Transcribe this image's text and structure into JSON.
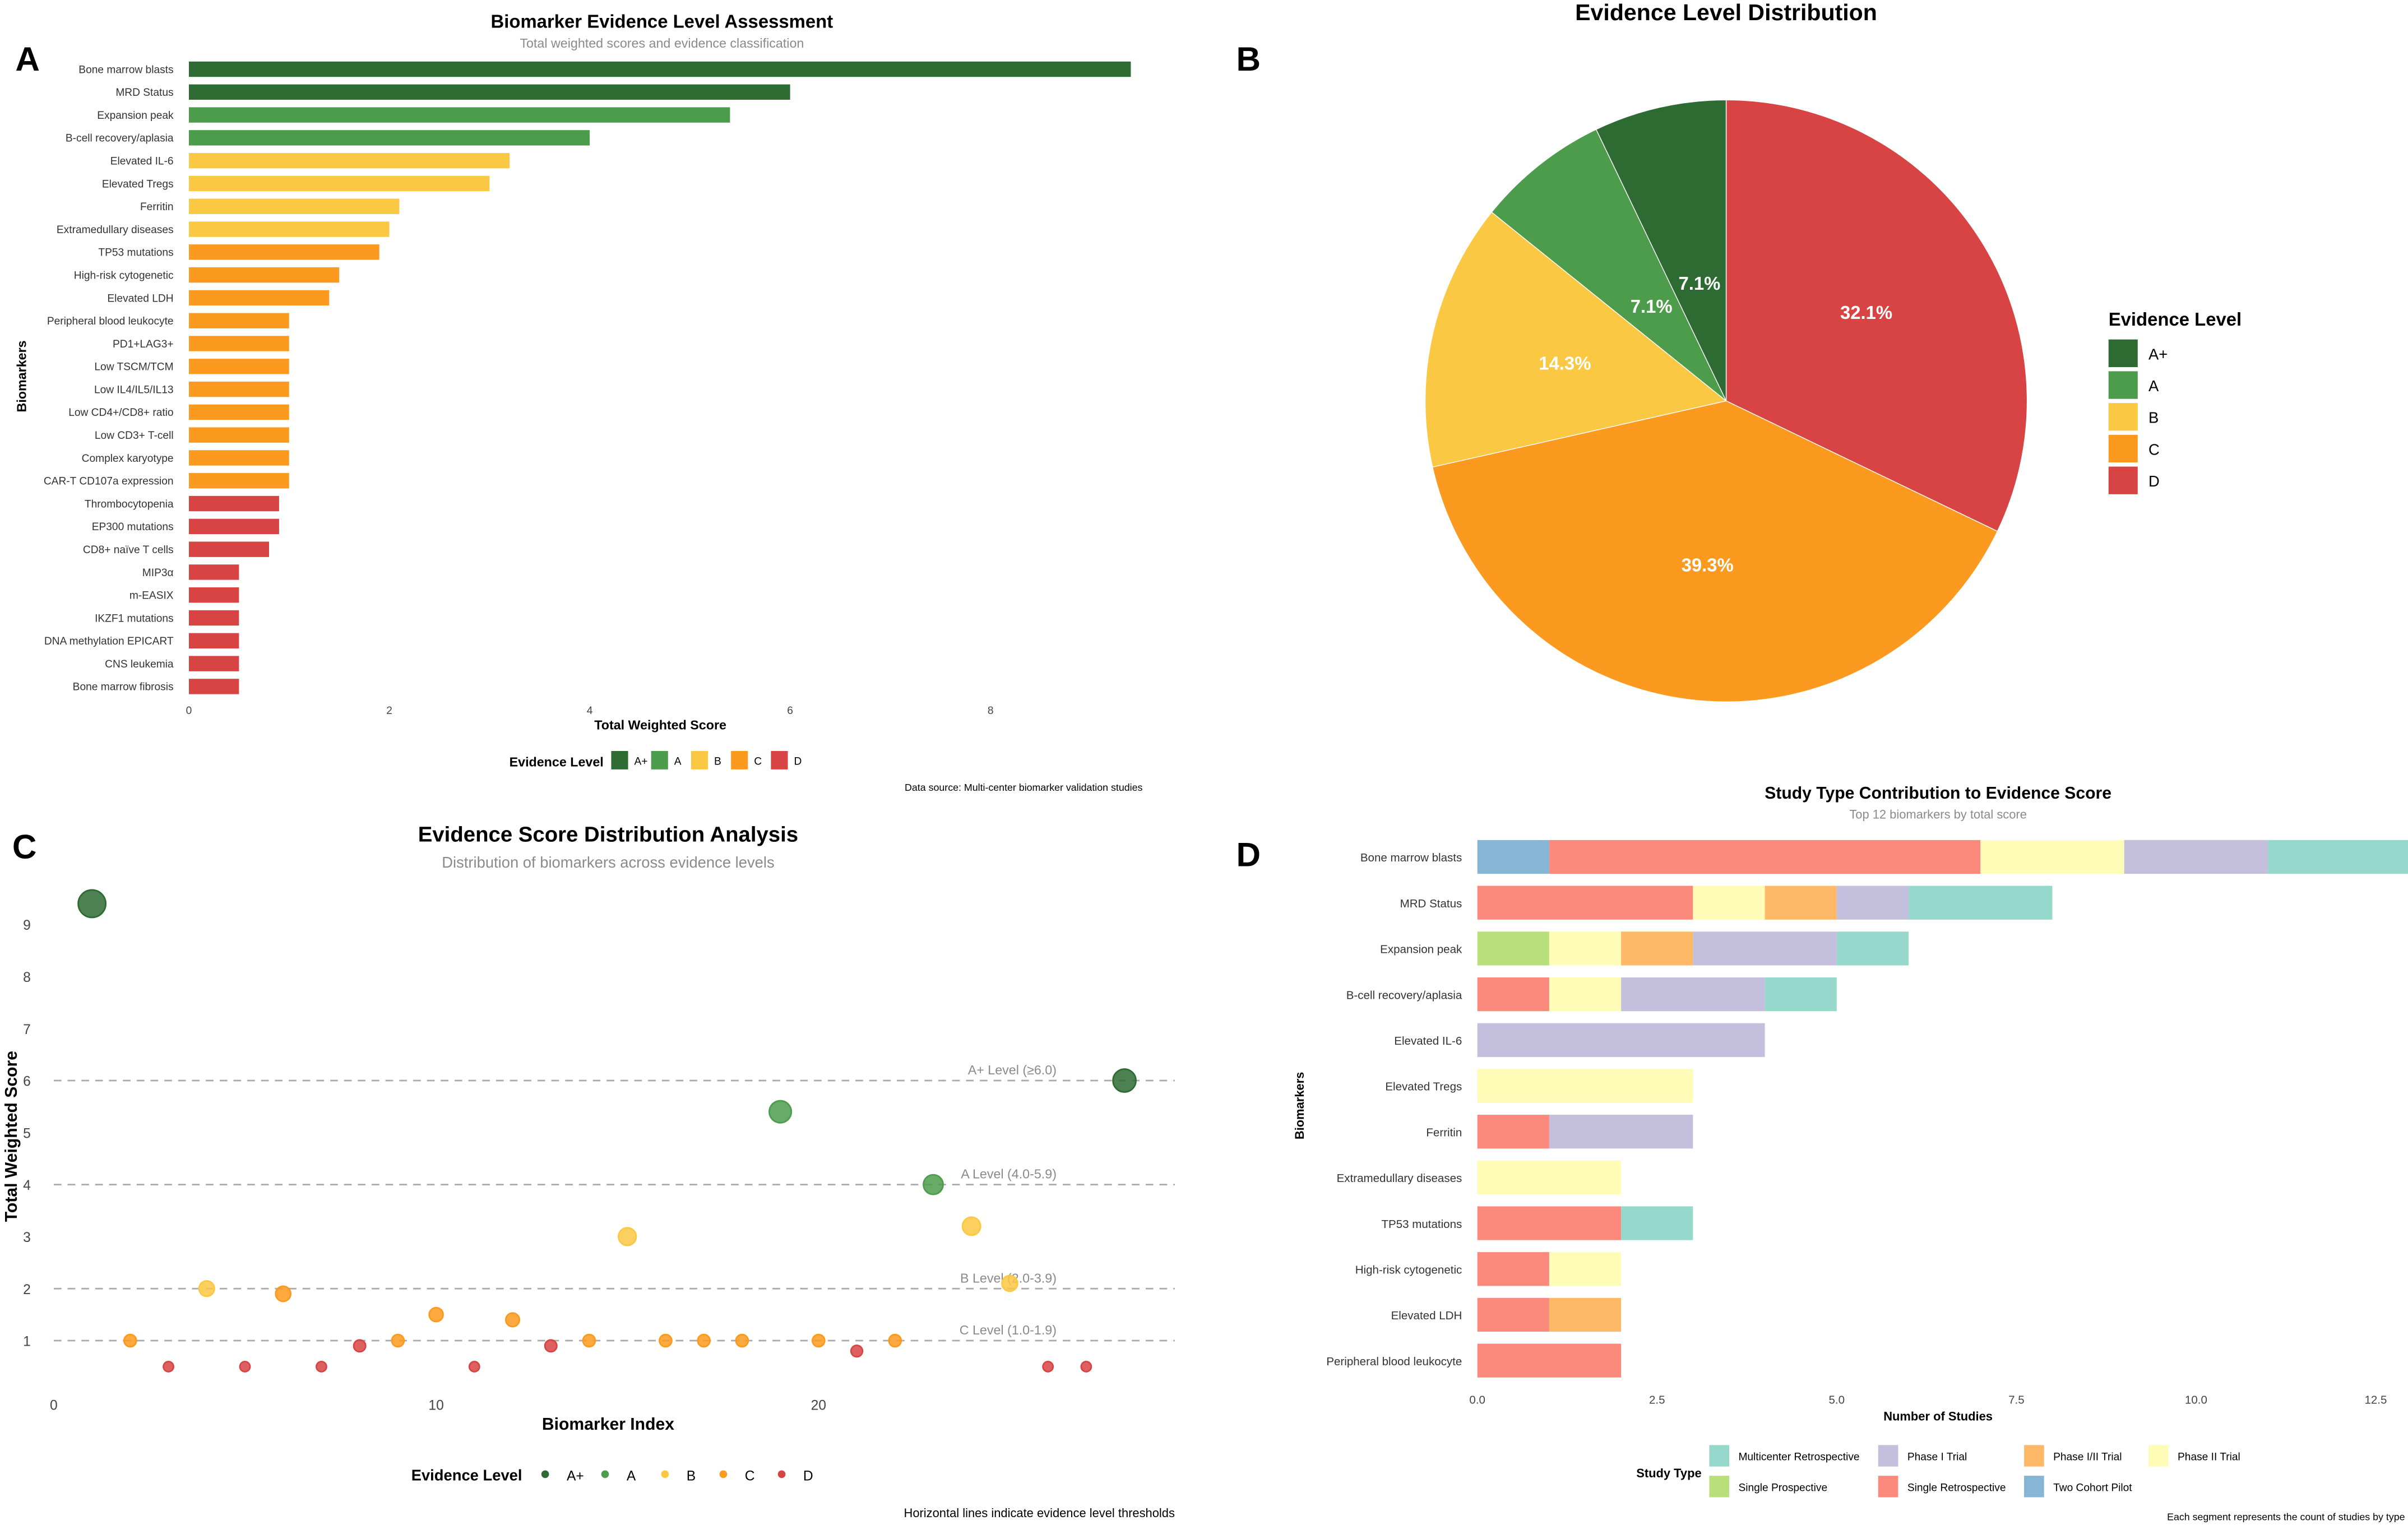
{
  "colors": {
    "A+": "#2e6b32",
    "A": "#4c9c4c",
    "B": "#fbc843",
    "C": "#fb9a1f",
    "D": "#d84444"
  },
  "evidence_levels": [
    "A+",
    "A",
    "B",
    "C",
    "D"
  ],
  "chart_data": [
    {
      "panel": "A",
      "type": "bar",
      "orientation": "horizontal",
      "title": "Biomarker Evidence Level Assessment",
      "subtitle": "Total weighted scores and evidence classification",
      "xlabel": "Total Weighted Score",
      "ylabel": "Biomarkers",
      "xlim": [
        0,
        9.4
      ],
      "xticks": [
        0,
        2,
        4,
        6,
        8
      ],
      "legend_title": "Evidence Level",
      "legend_placement": "bottom",
      "caption": "Data source: Multi-center biomarker validation studies",
      "categories": [
        "Bone marrow blasts",
        "MRD Status",
        "Expansion peak",
        "B-cell recovery/aplasia",
        "Elevated IL-6",
        "Elevated Tregs",
        "Ferritin",
        "Extramedullary diseases",
        "TP53 mutations",
        "High-risk cytogenetic",
        "Elevated LDH",
        "Peripheral blood leukocyte",
        "PD1+LAG3+",
        "Low TSCM/TCM",
        "Low IL4/IL5/IL13",
        "Low CD4+/CD8+ ratio",
        "Low CD3+ T-cell",
        "Complex karyotype",
        "CAR-T CD107a expression",
        "Thrombocytopenia",
        "EP300 mutations",
        "CD8+ naïve T cells",
        "MIP3α",
        "m-EASIX",
        "IKZF1 mutations",
        "DNA methylation EPICART",
        "CNS leukemia",
        "Bone marrow fibrosis"
      ],
      "values": [
        9.4,
        6.0,
        5.4,
        4.0,
        3.2,
        3.0,
        2.1,
        2.0,
        1.9,
        1.5,
        1.4,
        1.0,
        1.0,
        1.0,
        1.0,
        1.0,
        1.0,
        1.0,
        1.0,
        0.9,
        0.9,
        0.8,
        0.5,
        0.5,
        0.5,
        0.5,
        0.5,
        0.5
      ],
      "levels": [
        "A+",
        "A+",
        "A",
        "A",
        "B",
        "B",
        "B",
        "B",
        "C",
        "C",
        "C",
        "C",
        "C",
        "C",
        "C",
        "C",
        "C",
        "C",
        "C",
        "D",
        "D",
        "D",
        "D",
        "D",
        "D",
        "D",
        "D",
        "D"
      ]
    },
    {
      "panel": "B",
      "type": "pie",
      "title": "Evidence Level Distribution",
      "legend_title": "Evidence Level",
      "legend_placement": "right",
      "labels": [
        "D",
        "C",
        "B",
        "A",
        "A+"
      ],
      "values": [
        32.1,
        39.3,
        14.3,
        7.1,
        7.1
      ],
      "value_labels": [
        "32.1%",
        "39.3%",
        "14.3%",
        "7.1%",
        "7.1%"
      ]
    },
    {
      "panel": "C",
      "type": "scatter",
      "title": "Evidence Score Distribution Analysis",
      "subtitle": "Distribution of biomarkers across evidence levels",
      "xlabel": "Biomarker Index",
      "ylabel": "Total Weighted Score",
      "xlim": [
        0,
        28
      ],
      "ylim": [
        0.5,
        9.4
      ],
      "xticks": [
        0,
        10,
        20
      ],
      "yticks": [
        1,
        2,
        3,
        4,
        5,
        6,
        7,
        8,
        9
      ],
      "legend_title": "Evidence Level",
      "legend_placement": "bottom",
      "caption": "Horizontal lines indicate evidence level thresholds",
      "thresholds": [
        {
          "value": 6,
          "label": "A+ Level (≥6.0)"
        },
        {
          "value": 4,
          "label": "A Level (4.0-5.9)"
        },
        {
          "value": 2,
          "label": "B Level (2.0-3.9)"
        },
        {
          "value": 1,
          "label": "C Level (1.0-1.9)"
        }
      ],
      "points": [
        {
          "x": 1,
          "y": 9.4,
          "level": "A+"
        },
        {
          "x": 2,
          "y": 1.0,
          "level": "C"
        },
        {
          "x": 3,
          "y": 0.5,
          "level": "D"
        },
        {
          "x": 4,
          "y": 2.0,
          "level": "B"
        },
        {
          "x": 5,
          "y": 0.5,
          "level": "D"
        },
        {
          "x": 6,
          "y": 1.9,
          "level": "C"
        },
        {
          "x": 7,
          "y": 0.5,
          "level": "D"
        },
        {
          "x": 8,
          "y": 0.9,
          "level": "D"
        },
        {
          "x": 9,
          "y": 1.0,
          "level": "C"
        },
        {
          "x": 10,
          "y": 1.5,
          "level": "C"
        },
        {
          "x": 11,
          "y": 0.5,
          "level": "D"
        },
        {
          "x": 12,
          "y": 1.4,
          "level": "C"
        },
        {
          "x": 13,
          "y": 0.9,
          "level": "D"
        },
        {
          "x": 14,
          "y": 1.0,
          "level": "C"
        },
        {
          "x": 15,
          "y": 3.0,
          "level": "B"
        },
        {
          "x": 16,
          "y": 1.0,
          "level": "C"
        },
        {
          "x": 17,
          "y": 1.0,
          "level": "C"
        },
        {
          "x": 18,
          "y": 1.0,
          "level": "C"
        },
        {
          "x": 19,
          "y": 5.4,
          "level": "A"
        },
        {
          "x": 20,
          "y": 1.0,
          "level": "C"
        },
        {
          "x": 21,
          "y": 0.8,
          "level": "D"
        },
        {
          "x": 22,
          "y": 1.0,
          "level": "C"
        },
        {
          "x": 23,
          "y": 4.0,
          "level": "A"
        },
        {
          "x": 24,
          "y": 3.2,
          "level": "B"
        },
        {
          "x": 25,
          "y": 2.1,
          "level": "B"
        },
        {
          "x": 26,
          "y": 0.5,
          "level": "D"
        },
        {
          "x": 27,
          "y": 0.5,
          "level": "D"
        },
        {
          "x": 28,
          "y": 6.0,
          "level": "A+"
        }
      ]
    },
    {
      "panel": "D",
      "type": "bar",
      "stacked": true,
      "orientation": "horizontal",
      "title": "Study Type Contribution to Evidence Score",
      "subtitle": "Top 12 biomarkers by total score",
      "xlabel": "Number of Studies",
      "ylabel": "Biomarkers",
      "xlim": [
        0,
        13
      ],
      "xticks": [
        "0.0",
        "2.5",
        "5.0",
        "7.5",
        "10.0",
        "12.5"
      ],
      "legend_title": "Study Type",
      "legend_placement": "bottom",
      "caption": "Each segment represents the count of studies by type",
      "legend_order": [
        "Multicenter Retrospective",
        "Phase I Trial",
        "Phase I/II Trial",
        "Phase II Trial",
        "Single Prospective",
        "Single Retrospective",
        "Two Cohort Pilot"
      ],
      "stack_order": [
        "Two Cohort Pilot",
        "Single Prospective",
        "Single Retrospective",
        "Phase II Trial",
        "Phase I/II Trial",
        "Phase I Trial",
        "Multicenter Retrospective"
      ],
      "series_colors": {
        "Multicenter Retrospective": "#96d8cb",
        "Phase I Trial": "#c3bfdc",
        "Phase I/II Trial": "#fdb868",
        "Phase II Trial": "#fefcb6",
        "Single Prospective": "#b8e07a",
        "Single Retrospective": "#fb8a7d",
        "Two Cohort Pilot": "#86b5d6"
      },
      "categories": [
        "Bone marrow blasts",
        "MRD Status",
        "Expansion peak",
        "B-cell recovery/aplasia",
        "Elevated IL-6",
        "Elevated Tregs",
        "Ferritin",
        "Extramedullary diseases",
        "TP53 mutations",
        "High-risk cytogenetic",
        "Elevated LDH",
        "Peripheral blood leukocyte"
      ],
      "series": [
        {
          "name": "Two Cohort Pilot",
          "values": [
            1,
            0,
            0,
            0,
            0,
            0,
            0,
            0,
            0,
            0,
            0,
            0
          ]
        },
        {
          "name": "Single Prospective",
          "values": [
            0,
            0,
            1,
            0,
            0,
            0,
            0,
            0,
            0,
            0,
            0,
            0
          ]
        },
        {
          "name": "Single Retrospective",
          "values": [
            6,
            3,
            0,
            1,
            0,
            0,
            1,
            0,
            2,
            1,
            1,
            2
          ]
        },
        {
          "name": "Phase II Trial",
          "values": [
            2,
            1,
            1,
            1,
            0,
            3,
            0,
            2,
            0,
            1,
            0,
            0
          ]
        },
        {
          "name": "Phase I/II Trial",
          "values": [
            0,
            1,
            1,
            0,
            0,
            0,
            0,
            0,
            0,
            0,
            1,
            0
          ]
        },
        {
          "name": "Phase I Trial",
          "values": [
            2,
            1,
            2,
            2,
            4,
            0,
            2,
            0,
            0,
            0,
            0,
            0
          ]
        },
        {
          "name": "Multicenter Retrospective",
          "values": [
            2,
            2,
            1,
            1,
            0,
            0,
            0,
            0,
            1,
            0,
            0,
            0
          ]
        }
      ]
    }
  ]
}
